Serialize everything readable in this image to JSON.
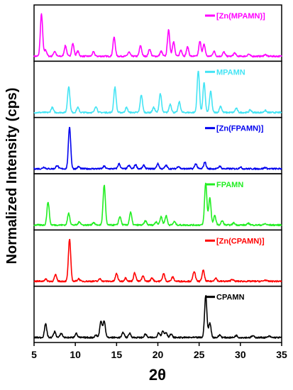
{
  "chart_data": {
    "type": "line",
    "layout": "stacked-panels",
    "xlabel": "2θ",
    "ylabel": "Normalized Intensity (cps)",
    "xlim": [
      5,
      35
    ],
    "xticks": [
      "5",
      "10",
      "15",
      "20",
      "25",
      "30",
      "35"
    ],
    "grid": false,
    "legend_position": "top-right (per panel)",
    "series": [
      {
        "name": "[Zn(MPAMN)]",
        "color": "#ff00ff",
        "peaks": [
          [
            5.9,
            1.0
          ],
          [
            6.4,
            0.15
          ],
          [
            7.5,
            0.12
          ],
          [
            8.8,
            0.25
          ],
          [
            9.7,
            0.3
          ],
          [
            10.3,
            0.12
          ],
          [
            12.2,
            0.1
          ],
          [
            14.7,
            0.45
          ],
          [
            16.5,
            0.1
          ],
          [
            17.9,
            0.25
          ],
          [
            19.0,
            0.17
          ],
          [
            20.4,
            0.12
          ],
          [
            21.3,
            0.62
          ],
          [
            21.9,
            0.35
          ],
          [
            22.8,
            0.15
          ],
          [
            23.6,
            0.22
          ],
          [
            25.1,
            0.35
          ],
          [
            25.6,
            0.28
          ],
          [
            26.8,
            0.12
          ],
          [
            28.0,
            0.1
          ],
          [
            29.3,
            0.08
          ],
          [
            31.0,
            0.05
          ],
          [
            33.0,
            0.04
          ]
        ]
      },
      {
        "name": "MPAMN",
        "color": "#44e4f4",
        "peaks": [
          [
            7.2,
            0.12
          ],
          [
            9.2,
            0.62
          ],
          [
            10.3,
            0.12
          ],
          [
            12.5,
            0.15
          ],
          [
            14.8,
            0.6
          ],
          [
            16.2,
            0.12
          ],
          [
            18.0,
            0.42
          ],
          [
            19.5,
            0.12
          ],
          [
            20.3,
            0.45
          ],
          [
            21.5,
            0.2
          ],
          [
            22.6,
            0.25
          ],
          [
            24.9,
            1.0
          ],
          [
            25.6,
            0.7
          ],
          [
            26.4,
            0.5
          ],
          [
            27.6,
            0.15
          ],
          [
            29.5,
            0.1
          ],
          [
            31.2,
            0.06
          ],
          [
            33.0,
            0.05
          ]
        ]
      },
      {
        "name": "[Zn(FPAMN)]",
        "color": "#0000ee",
        "peaks": [
          [
            6.2,
            0.04
          ],
          [
            7.8,
            0.08
          ],
          [
            9.3,
            1.0
          ],
          [
            10.4,
            0.05
          ],
          [
            13.5,
            0.06
          ],
          [
            15.3,
            0.12
          ],
          [
            16.5,
            0.08
          ],
          [
            17.3,
            0.1
          ],
          [
            18.3,
            0.08
          ],
          [
            20.0,
            0.12
          ],
          [
            21.0,
            0.08
          ],
          [
            22.5,
            0.06
          ],
          [
            24.6,
            0.12
          ],
          [
            25.7,
            0.16
          ],
          [
            27.5,
            0.06
          ],
          [
            30.0,
            0.04
          ],
          [
            33.0,
            0.03
          ]
        ]
      },
      {
        "name": "FPAMN",
        "color": "#22ee22",
        "peaks": [
          [
            6.7,
            0.55
          ],
          [
            9.2,
            0.28
          ],
          [
            10.5,
            0.08
          ],
          [
            12.2,
            0.06
          ],
          [
            13.5,
            0.95
          ],
          [
            15.4,
            0.2
          ],
          [
            16.7,
            0.3
          ],
          [
            18.5,
            0.1
          ],
          [
            19.8,
            0.08
          ],
          [
            20.4,
            0.2
          ],
          [
            21.0,
            0.22
          ],
          [
            22.0,
            0.08
          ],
          [
            25.8,
            1.0
          ],
          [
            26.3,
            0.65
          ],
          [
            26.9,
            0.22
          ],
          [
            27.8,
            0.1
          ],
          [
            29.2,
            0.05
          ],
          [
            31.0,
            0.04
          ],
          [
            33.0,
            0.03
          ]
        ]
      },
      {
        "name": "[Zn(CPAMN)]",
        "color": "#ff0000",
        "peaks": [
          [
            6.4,
            0.05
          ],
          [
            7.6,
            0.15
          ],
          [
            9.3,
            1.0
          ],
          [
            10.4,
            0.06
          ],
          [
            13.0,
            0.06
          ],
          [
            15.0,
            0.18
          ],
          [
            16.1,
            0.08
          ],
          [
            17.2,
            0.2
          ],
          [
            18.2,
            0.12
          ],
          [
            19.3,
            0.08
          ],
          [
            20.7,
            0.18
          ],
          [
            21.8,
            0.1
          ],
          [
            24.4,
            0.24
          ],
          [
            25.5,
            0.26
          ],
          [
            27.0,
            0.08
          ],
          [
            29.0,
            0.05
          ],
          [
            33.0,
            0.03
          ]
        ]
      },
      {
        "name": "CPAMN",
        "color": "#000000",
        "peaks": [
          [
            6.4,
            0.32
          ],
          [
            7.5,
            0.14
          ],
          [
            8.3,
            0.1
          ],
          [
            10.1,
            0.1
          ],
          [
            12.5,
            0.06
          ],
          [
            13.1,
            0.38
          ],
          [
            13.5,
            0.4
          ],
          [
            15.8,
            0.12
          ],
          [
            16.6,
            0.1
          ],
          [
            18.5,
            0.08
          ],
          [
            20.1,
            0.12
          ],
          [
            20.6,
            0.15
          ],
          [
            21.0,
            0.12
          ],
          [
            21.6,
            0.08
          ],
          [
            25.8,
            1.0
          ],
          [
            26.3,
            0.35
          ],
          [
            27.5,
            0.06
          ],
          [
            29.5,
            0.05
          ],
          [
            31.5,
            0.04
          ],
          [
            33.5,
            0.03
          ]
        ]
      }
    ]
  }
}
